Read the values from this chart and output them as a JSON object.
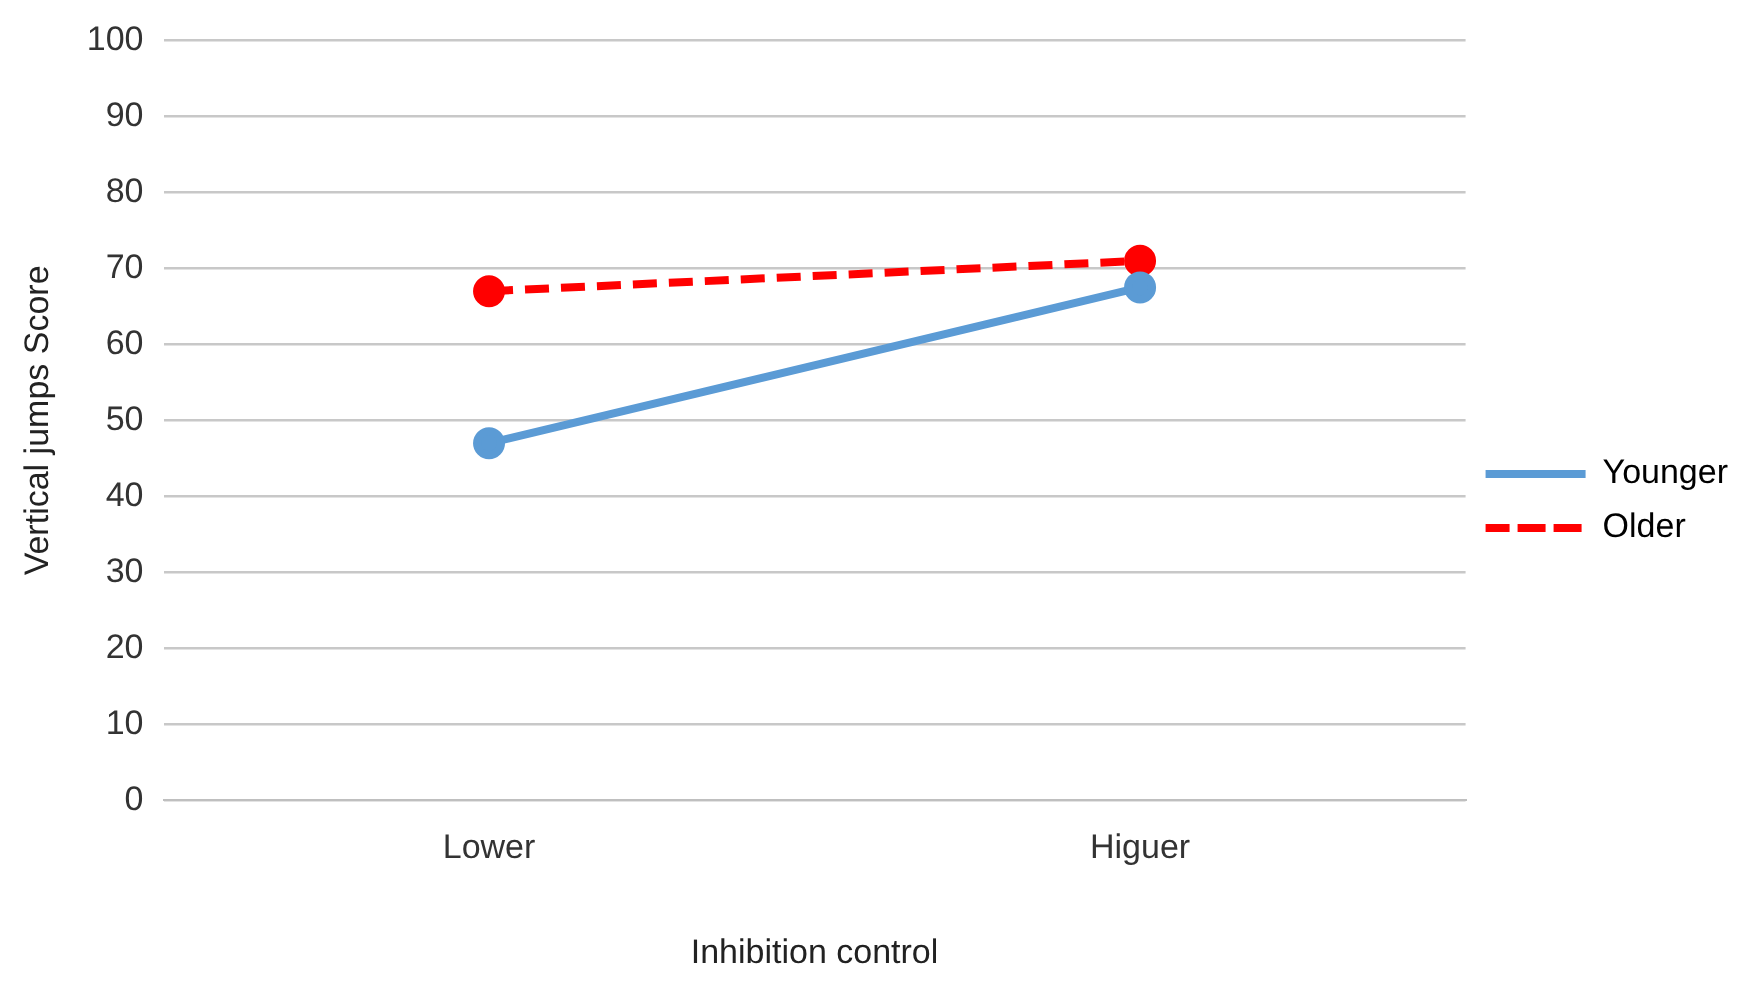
{
  "chart_data": {
    "type": "line",
    "xlabel": "Inhibition control",
    "ylabel": "Vertical jumps Score",
    "categories": [
      "Lower",
      "Higuer"
    ],
    "series": [
      {
        "name": "Younger",
        "color": "#5b9bd5",
        "values": [
          47,
          67.5
        ],
        "line_style": "solid"
      },
      {
        "name": "Older",
        "color": "#ff0000",
        "values": [
          67,
          71
        ],
        "line_style": "dashed"
      }
    ],
    "ylim": [
      0,
      100
    ],
    "yticks": [
      0,
      10,
      20,
      30,
      40,
      50,
      60,
      70,
      80,
      90,
      100
    ],
    "grid": "y",
    "legend": "right",
    "marker": "circle"
  }
}
